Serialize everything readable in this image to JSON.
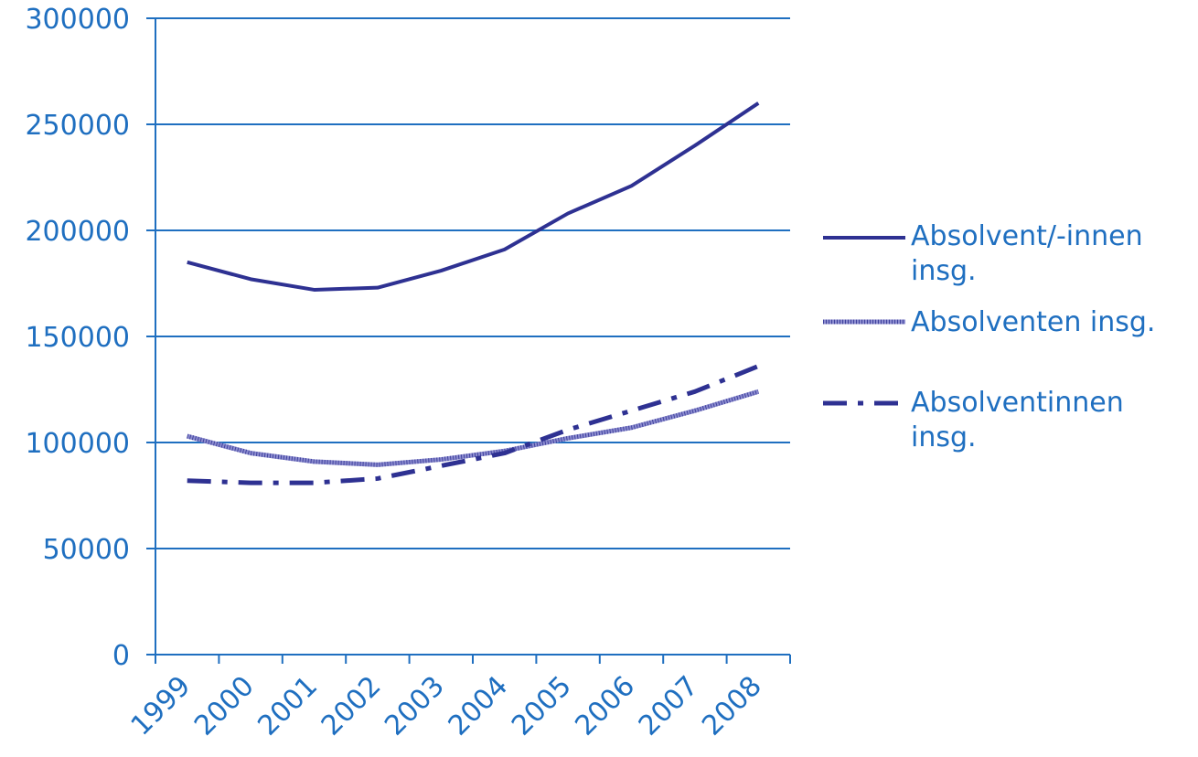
{
  "chart_data": {
    "type": "line",
    "categories": [
      "1999",
      "2000",
      "2001",
      "2002",
      "2003",
      "2004",
      "2005",
      "2006",
      "2007",
      "2008"
    ],
    "ylim": [
      0,
      300000
    ],
    "yticks": [
      "0",
      "50000",
      "100000",
      "150000",
      "200000",
      "250000",
      "300000"
    ],
    "grid": true,
    "legend_position": "right",
    "series": [
      {
        "name": "Absolvent/-innen insg.",
        "style": "solid",
        "values": [
          185000,
          177000,
          172000,
          173000,
          181000,
          191000,
          208000,
          221000,
          240000,
          260000
        ]
      },
      {
        "name": "Absolventen insg.",
        "style": "hatched",
        "values": [
          103000,
          95000,
          91000,
          89500,
          92000,
          96000,
          102000,
          107000,
          115000,
          124000
        ]
      },
      {
        "name": "Absolventinnen insg.",
        "style": "dash-dot",
        "values": [
          82000,
          81000,
          81000,
          83000,
          89000,
          95000,
          106000,
          115000,
          124000,
          136000
        ]
      }
    ],
    "colors": {
      "axis": "#1f6fc0",
      "grid": "#1f6fc0",
      "line": "#2e3192",
      "line_light": "#8c8ccf",
      "text": "#1f6fc0"
    }
  }
}
